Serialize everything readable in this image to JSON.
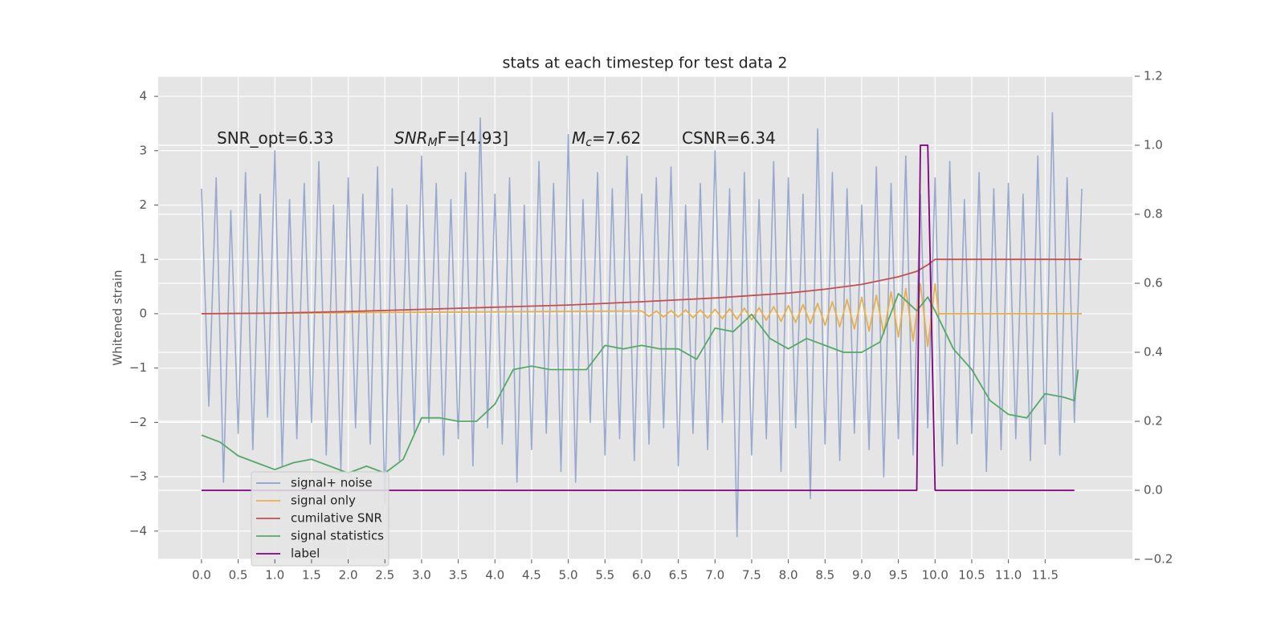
{
  "chart_data": {
    "type": "line",
    "title": "stats at each timestep for test data 2",
    "ylabel": "Whitened strain",
    "xlim": [
      -0.59,
      12.69
    ],
    "ylim": [
      -4.52,
      4.37
    ],
    "y2lim": [
      -0.2,
      1.2
    ],
    "xticks": [
      {
        "value": 0,
        "label": "0.0"
      },
      0.5,
      {
        "value": 1,
        "label": "1.0"
      },
      1.5,
      {
        "value": 2,
        "label": "2.0"
      },
      2.5,
      {
        "value": 3,
        "label": "3.0"
      },
      3.5,
      {
        "value": 4,
        "label": "4.0"
      },
      4.5,
      {
        "value": 5,
        "label": "5.0"
      },
      5.5,
      {
        "value": 6,
        "label": "6.0"
      },
      6.5,
      {
        "value": 7,
        "label": "7.0"
      },
      7.5,
      {
        "value": 8,
        "label": "8.0"
      },
      8.5,
      {
        "value": 9,
        "label": "9.0"
      },
      9.5,
      {
        "value": 10,
        "label": "10.0"
      },
      10.5,
      {
        "value": 11,
        "label": "11.0"
      },
      11.5
    ],
    "yticks": [
      {
        "value": -4,
        "label": "−4"
      },
      {
        "value": -3,
        "label": "−3"
      },
      {
        "value": -2,
        "label": "−2"
      },
      {
        "value": -1,
        "label": "−1"
      },
      0,
      1,
      2,
      3,
      4
    ],
    "y2ticks": [
      {
        "value": -0.2,
        "label": "−0.2"
      },
      {
        "value": 0,
        "label": "0.0"
      },
      0.2,
      0.4,
      0.6,
      0.8,
      {
        "value": 1,
        "label": "1.0"
      },
      1.2
    ],
    "grid": true,
    "legend_loc": "lower left",
    "annotations": [
      {
        "text": "SNR_opt=6.33"
      },
      {
        "text": "SNR",
        "sub": "M",
        "after": "F=[4.93]"
      },
      {
        "text": "M",
        "sub": "c",
        "after": "=7.62"
      },
      {
        "text": "CSNR=6.34"
      }
    ],
    "series": [
      {
        "name": "signal+ noise",
        "color": "#8ea2cc",
        "axis": "y",
        "x": [
          0,
          0.1,
          0.2,
          0.3,
          0.4,
          0.5,
          0.6,
          0.7,
          0.8,
          0.9,
          1,
          1.1,
          1.2,
          1.3,
          1.4,
          1.5,
          1.6,
          1.7,
          1.8,
          1.9,
          2,
          2.1,
          2.2,
          2.3,
          2.4,
          2.5,
          2.6,
          2.7,
          2.8,
          2.9,
          3,
          3.1,
          3.2,
          3.3,
          3.4,
          3.5,
          3.6,
          3.7,
          3.8,
          3.9,
          4,
          4.1,
          4.2,
          4.3,
          4.4,
          4.5,
          4.6,
          4.7,
          4.8,
          4.9,
          5,
          5.1,
          5.2,
          5.3,
          5.4,
          5.5,
          5.6,
          5.7,
          5.8,
          5.9,
          6,
          6.1,
          6.2,
          6.3,
          6.4,
          6.5,
          6.6,
          6.7,
          6.8,
          6.9,
          7,
          7.1,
          7.2,
          7.3,
          7.4,
          7.5,
          7.6,
          7.7,
          7.8,
          7.9,
          8,
          8.1,
          8.2,
          8.3,
          8.4,
          8.5,
          8.6,
          8.7,
          8.8,
          8.9,
          9,
          9.1,
          9.2,
          9.3,
          9.4,
          9.5,
          9.6,
          9.7,
          9.8,
          9.9,
          10,
          10.1,
          10.2,
          10.3,
          10.4,
          10.5,
          10.6,
          10.7,
          10.8,
          10.9,
          11,
          11.1,
          11.2,
          11.3,
          11.4,
          11.5,
          11.6,
          11.7,
          11.8,
          11.9,
          12
        ],
        "values": [
          2.3,
          -1.7,
          2.5,
          -3.1,
          1.9,
          -2.2,
          2.6,
          -2.5,
          2.2,
          -1.9,
          3.0,
          -2.8,
          2.1,
          -2.3,
          2.4,
          -2.0,
          2.8,
          -2.6,
          2.0,
          -2.9,
          2.5,
          -2.1,
          2.2,
          -2.4,
          2.7,
          -3.5,
          2.3,
          -2.7,
          2.0,
          -2.2,
          2.9,
          -2.0,
          2.4,
          -2.6,
          2.1,
          -2.3,
          2.6,
          -2.8,
          3.6,
          -2.1,
          2.2,
          -2.4,
          2.5,
          -3.1,
          2.0,
          -2.5,
          2.8,
          -2.2,
          2.4,
          -2.9,
          3.3,
          -3.1,
          2.1,
          -2.0,
          2.6,
          -2.6,
          2.3,
          -2.3,
          2.9,
          -2.7,
          2.2,
          -2.4,
          2.5,
          -2.1,
          2.7,
          -2.8,
          2.0,
          -2.2,
          2.4,
          -2.5,
          3.0,
          -2.0,
          2.3,
          -4.1,
          2.6,
          -2.6,
          2.1,
          -2.3,
          2.8,
          -2.9,
          2.5,
          -2.1,
          2.2,
          -3.4,
          3.4,
          -2.4,
          2.6,
          -2.7,
          2.3,
          -2.2,
          2.0,
          -2.5,
          2.7,
          -3.0,
          2.4,
          -2.3,
          2.9,
          -2.6,
          2.2,
          -2.1,
          2.5,
          -2.8,
          2.8,
          -2.4,
          2.1,
          -2.2,
          2.6,
          -2.9,
          2.3,
          -2.5,
          2.4,
          -2.3,
          2.2,
          -2.7,
          2.9,
          -2.4,
          3.7,
          -2.6,
          2.5,
          -2.0,
          2.3
        ]
      },
      {
        "name": "signal only",
        "color": "#e8b04a",
        "axis": "y",
        "x": [
          0,
          6.0,
          6.1,
          6.2,
          6.3,
          6.4,
          6.5,
          6.6,
          6.7,
          6.8,
          6.9,
          7.0,
          7.1,
          7.2,
          7.3,
          7.4,
          7.5,
          7.6,
          7.7,
          7.8,
          7.9,
          8.0,
          8.1,
          8.2,
          8.3,
          8.4,
          8.5,
          8.6,
          8.7,
          8.8,
          8.9,
          9.0,
          9.1,
          9.2,
          9.3,
          9.4,
          9.5,
          9.6,
          9.7,
          9.8,
          9.9,
          10.0,
          10.05,
          12
        ],
        "values": [
          0,
          0.05,
          -0.05,
          0.05,
          -0.06,
          0.06,
          -0.06,
          0.07,
          -0.07,
          0.07,
          -0.08,
          0.08,
          -0.09,
          0.09,
          -0.1,
          0.1,
          -0.11,
          0.11,
          -0.12,
          0.13,
          -0.14,
          0.15,
          -0.16,
          0.17,
          -0.18,
          0.19,
          -0.21,
          0.22,
          -0.24,
          0.26,
          -0.28,
          0.3,
          -0.32,
          0.34,
          -0.37,
          0.4,
          -0.43,
          0.46,
          -0.5,
          0.55,
          -0.6,
          0.55,
          0,
          0
        ]
      },
      {
        "name": "cumilative SNR",
        "color": "#c44e52",
        "axis": "y",
        "x": [
          0,
          1,
          2,
          3,
          4,
          5,
          6,
          7,
          8,
          8.5,
          9,
          9.5,
          9.75,
          9.9,
          10,
          12
        ],
        "values": [
          0,
          0.01,
          0.04,
          0.08,
          0.12,
          0.16,
          0.22,
          0.29,
          0.38,
          0.45,
          0.54,
          0.68,
          0.78,
          0.9,
          1,
          1
        ]
      },
      {
        "name": "signal statistics",
        "color": "#55a868",
        "axis": "y2",
        "x": [
          0,
          0.25,
          0.5,
          0.75,
          1,
          1.25,
          1.5,
          1.75,
          2,
          2.25,
          2.5,
          2.75,
          3,
          3.25,
          3.5,
          3.75,
          4,
          4.25,
          4.5,
          4.75,
          5,
          5.25,
          5.5,
          5.75,
          6,
          6.25,
          6.5,
          6.75,
          7,
          7.25,
          7.5,
          7.75,
          8,
          8.25,
          8.5,
          8.75,
          9,
          9.25,
          9.5,
          9.75,
          9.9,
          10,
          10.25,
          10.5,
          10.75,
          11,
          11.25,
          11.5,
          11.75,
          11.9,
          11.95
        ],
        "values": [
          0.16,
          0.14,
          0.1,
          0.08,
          0.06,
          0.08,
          0.09,
          0.07,
          0.05,
          0.07,
          0.05,
          0.09,
          0.21,
          0.21,
          0.2,
          0.2,
          0.25,
          0.35,
          0.36,
          0.35,
          0.35,
          0.35,
          0.42,
          0.41,
          0.42,
          0.41,
          0.41,
          0.38,
          0.47,
          0.46,
          0.51,
          0.44,
          0.41,
          0.44,
          0.42,
          0.4,
          0.4,
          0.43,
          0.57,
          0.52,
          0.56,
          0.52,
          0.41,
          0.35,
          0.26,
          0.22,
          0.21,
          0.28,
          0.27,
          0.26,
          0.35
        ]
      },
      {
        "name": "label",
        "color": "#800080",
        "axis": "y2",
        "x": [
          0,
          9.75,
          9.8,
          9.9,
          10,
          11.9
        ],
        "values": [
          0,
          0,
          1,
          1,
          0,
          0
        ]
      }
    ]
  }
}
